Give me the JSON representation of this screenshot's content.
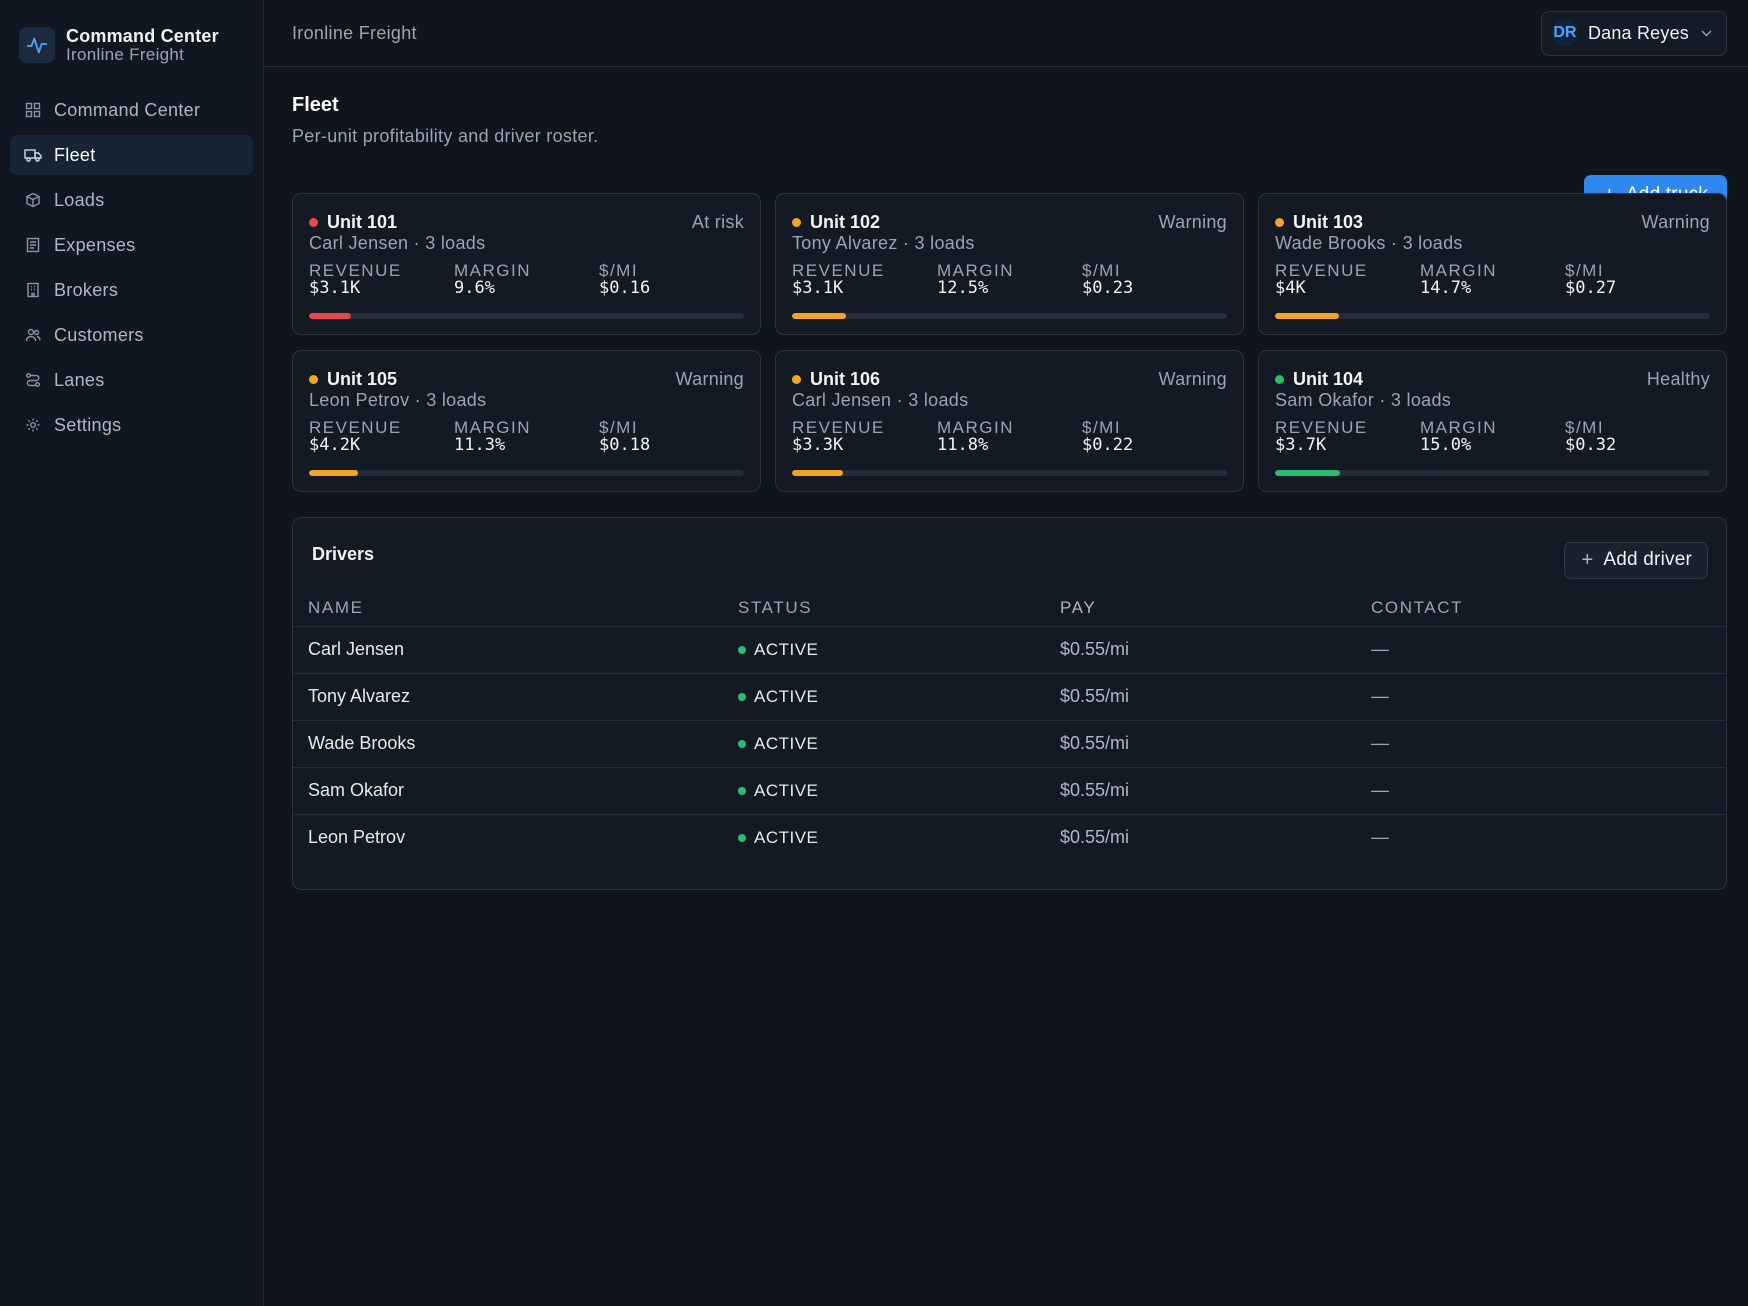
{
  "brand": {
    "title": "Command Center",
    "subtitle": "Ironline Freight"
  },
  "sidebar": {
    "items": [
      {
        "label": "Command Center",
        "icon": "dashboard-grid-icon",
        "active": false
      },
      {
        "label": "Fleet",
        "icon": "truck-icon",
        "active": true
      },
      {
        "label": "Loads",
        "icon": "package-icon",
        "active": false
      },
      {
        "label": "Expenses",
        "icon": "receipt-icon",
        "active": false
      },
      {
        "label": "Brokers",
        "icon": "building-icon",
        "active": false
      },
      {
        "label": "Customers",
        "icon": "users-icon",
        "active": false
      },
      {
        "label": "Lanes",
        "icon": "route-icon",
        "active": false
      },
      {
        "label": "Settings",
        "icon": "gear-icon",
        "active": false
      }
    ]
  },
  "topbar": {
    "title": "Ironline Freight",
    "user": {
      "initials": "DR",
      "name": "Dana Reyes"
    }
  },
  "page": {
    "title": "Fleet",
    "subtitle": "Per-unit profitability and driver roster.",
    "add_truck_label": "Add truck"
  },
  "metric_labels": {
    "revenue": "REVENUE",
    "margin": "MARGIN",
    "per_mile": "$/MI"
  },
  "units": [
    {
      "name": "Unit 101",
      "status": "At risk",
      "driver_line": "Carl Jensen · 3 loads",
      "revenue": "$3.1K",
      "margin": "9.6%",
      "per_mile": "$0.16",
      "margin_fraction": 0.096,
      "color": "#e5484d"
    },
    {
      "name": "Unit 102",
      "status": "Warning",
      "driver_line": "Tony Alvarez · 3 loads",
      "revenue": "$3.1K",
      "margin": "12.5%",
      "per_mile": "$0.23",
      "margin_fraction": 0.125,
      "color": "#f5a524"
    },
    {
      "name": "Unit 103",
      "status": "Warning",
      "driver_line": "Wade Brooks · 3 loads",
      "revenue": "$4K",
      "margin": "14.7%",
      "per_mile": "$0.27",
      "margin_fraction": 0.147,
      "color": "#f5a524"
    },
    {
      "name": "Unit 105",
      "status": "Warning",
      "driver_line": "Leon Petrov · 3 loads",
      "revenue": "$4.2K",
      "margin": "11.3%",
      "per_mile": "$0.18",
      "margin_fraction": 0.113,
      "color": "#f5a524"
    },
    {
      "name": "Unit 106",
      "status": "Warning",
      "driver_line": "Carl Jensen · 3 loads",
      "revenue": "$3.3K",
      "margin": "11.8%",
      "per_mile": "$0.22",
      "margin_fraction": 0.118,
      "color": "#f5a524"
    },
    {
      "name": "Unit 104",
      "status": "Healthy",
      "driver_line": "Sam Okafor · 3 loads",
      "revenue": "$3.7K",
      "margin": "15.0%",
      "per_mile": "$0.32",
      "margin_fraction": 0.15,
      "color": "#2bbd6e"
    }
  ],
  "drivers": {
    "title": "Drivers",
    "add_label": "Add driver",
    "columns": [
      "NAME",
      "STATUS",
      "PAY",
      "CONTACT"
    ],
    "rows": [
      {
        "name": "Carl Jensen",
        "status": "ACTIVE",
        "pay": "$0.55/mi",
        "contact": "—"
      },
      {
        "name": "Tony Alvarez",
        "status": "ACTIVE",
        "pay": "$0.55/mi",
        "contact": "—"
      },
      {
        "name": "Wade Brooks",
        "status": "ACTIVE",
        "pay": "$0.55/mi",
        "contact": "—"
      },
      {
        "name": "Sam Okafor",
        "status": "ACTIVE",
        "pay": "$0.55/mi",
        "contact": "—"
      },
      {
        "name": "Leon Petrov",
        "status": "ACTIVE",
        "pay": "$0.55/mi",
        "contact": "—"
      }
    ]
  },
  "colors": {
    "accent": "#2f88f0",
    "active_status": "#2bbd6e"
  }
}
